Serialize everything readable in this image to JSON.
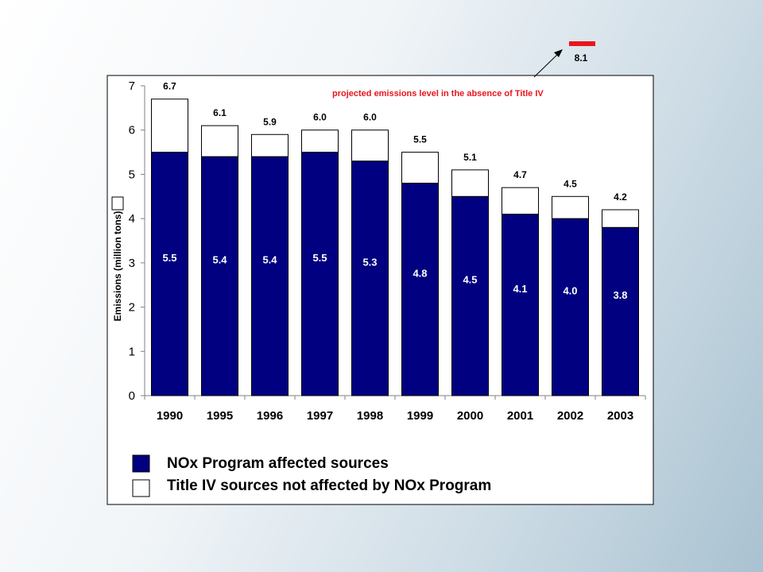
{
  "chart_data": {
    "type": "bar",
    "stacked": true,
    "ylabel": "Emissions (million tons)",
    "xlabel": "",
    "ylim": [
      0,
      7
    ],
    "yticks": [
      "0",
      "1",
      "2",
      "3",
      "4",
      "5",
      "6",
      "7"
    ],
    "categories": [
      "1990",
      "1995",
      "1996",
      "1997",
      "1998",
      "1999",
      "2000",
      "2001",
      "2002",
      "2003"
    ],
    "series": [
      {
        "name": "NOx Program affected sources",
        "values": [
          5.5,
          5.4,
          5.4,
          5.5,
          5.3,
          4.8,
          4.5,
          4.1,
          4.0,
          3.8
        ],
        "labels": [
          "5.5",
          "5.4",
          "5.4",
          "5.5",
          "5.3",
          "4.8",
          "4.5",
          "4.1",
          "4.0",
          "3.8"
        ],
        "color": "#000080"
      },
      {
        "name": "Title IV sources not affected by NOx Program",
        "values": [
          1.2,
          0.7,
          0.5,
          0.5,
          0.7,
          0.7,
          0.6,
          0.6,
          0.5,
          0.4
        ],
        "color": "#ffffff"
      }
    ],
    "totals": [
      6.7,
      6.1,
      5.9,
      6.0,
      6.0,
      5.5,
      5.1,
      4.7,
      4.5,
      4.2
    ],
    "total_labels": [
      "6.7",
      "6.1",
      "5.9",
      "6.0",
      "6.0",
      "5.5",
      "5.1",
      "4.7",
      "4.5",
      "4.2"
    ],
    "projection": {
      "value": 8.1,
      "label": "8.1",
      "text": "projected emissions level in the absence of Title IV",
      "color": "#e8161e"
    },
    "legend": {
      "placement": "bottom",
      "entries": [
        "NOx Program affected sources",
        "Title IV sources not affected by NOx Program"
      ]
    },
    "grid": false
  }
}
